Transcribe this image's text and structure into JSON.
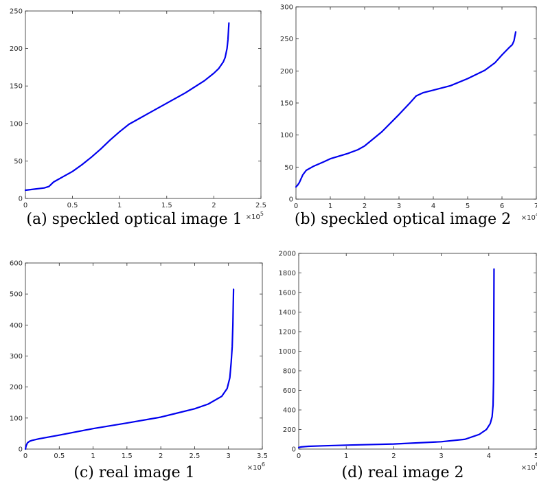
{
  "chart_data": [
    {
      "type": "line",
      "caption": "(a) speckled optical image 1",
      "xlim": [
        0,
        250000
      ],
      "ylim": [
        0,
        250
      ],
      "x_ticks": [
        0,
        50000,
        100000,
        150000,
        200000,
        250000
      ],
      "x_tick_labels": [
        "0",
        "0.5",
        "1",
        "1.5",
        "2",
        "2.5"
      ],
      "y_ticks": [
        0,
        50,
        100,
        150,
        200,
        250
      ],
      "y_tick_labels": [
        "0",
        "50",
        "100",
        "150",
        "200",
        "250"
      ],
      "x_multiplier": {
        "base": "×10",
        "exp": "5"
      },
      "grid": false,
      "color": "#0000ee",
      "series": [
        {
          "x": [
            0,
            10000,
            20000,
            25000,
            30000,
            40000,
            50000,
            60000,
            70000,
            80000,
            90000,
            100000,
            110000,
            120000,
            130000,
            140000,
            150000,
            160000,
            170000,
            180000,
            190000,
            200000,
            205000,
            210000,
            212000,
            214000,
            215000,
            215500,
            216000
          ],
          "y": [
            11,
            12.5,
            14,
            16,
            22,
            29,
            36,
            45,
            55,
            66,
            78,
            89,
            99,
            106,
            113,
            120,
            127,
            134,
            141,
            149,
            157,
            167,
            173,
            182,
            188,
            200,
            212,
            223,
            234
          ]
        }
      ]
    },
    {
      "type": "line",
      "caption": "(b) speckled optical image 2",
      "xlim": [
        0,
        70000
      ],
      "ylim": [
        0,
        300
      ],
      "x_ticks": [
        0,
        10000,
        20000,
        30000,
        40000,
        50000,
        60000,
        70000
      ],
      "x_tick_labels": [
        "0",
        "1",
        "2",
        "3",
        "4",
        "5",
        "6",
        "7"
      ],
      "y_ticks": [
        0,
        50,
        100,
        150,
        200,
        250,
        300
      ],
      "y_tick_labels": [
        "0",
        "50",
        "100",
        "150",
        "200",
        "250",
        "300"
      ],
      "x_multiplier": {
        "base": "×10",
        "exp": "4"
      },
      "grid": false,
      "color": "#0000ee",
      "series": [
        {
          "x": [
            0,
            500,
            1000,
            2000,
            3000,
            5000,
            8000,
            10000,
            15000,
            18000,
            20000,
            25000,
            30000,
            33000,
            35000,
            37000,
            40000,
            45000,
            50000,
            55000,
            58000,
            60000,
            62000,
            63000,
            63500,
            64000
          ],
          "y": [
            19,
            22,
            26,
            38,
            45,
            51,
            58,
            63,
            71,
            77,
            83,
            105,
            132,
            149,
            161,
            166,
            170,
            177,
            188,
            201,
            213,
            225,
            236,
            241,
            247,
            261
          ]
        }
      ]
    },
    {
      "type": "line",
      "caption": "(c) real image 1",
      "xlim": [
        0,
        3500000
      ],
      "ylim": [
        0,
        600
      ],
      "x_ticks": [
        0,
        500000,
        1000000,
        1500000,
        2000000,
        2500000,
        3000000,
        3500000
      ],
      "x_tick_labels": [
        "0",
        "0.5",
        "1",
        "1.5",
        "2",
        "2.5",
        "3",
        "3.5"
      ],
      "y_ticks": [
        0,
        100,
        200,
        300,
        400,
        500,
        600
      ],
      "y_tick_labels": [
        "0",
        "100",
        "200",
        "300",
        "400",
        "500",
        "600"
      ],
      "x_multiplier": {
        "base": "×10",
        "exp": "6"
      },
      "grid": false,
      "color": "#0000ee",
      "series": [
        {
          "x": [
            0,
            10000,
            30000,
            60000,
            100000,
            200000,
            500000,
            1000000,
            1500000,
            2000000,
            2500000,
            2700000,
            2900000,
            2980000,
            3020000,
            3040000,
            3055000,
            3065000,
            3070000,
            3075000
          ],
          "y": [
            0,
            10,
            20,
            25,
            28,
            33,
            45,
            66,
            84,
            103,
            130,
            145,
            170,
            195,
            230,
            280,
            330,
            400,
            460,
            515
          ]
        }
      ]
    },
    {
      "type": "line",
      "caption": "(d) real image 2",
      "xlim": [
        0,
        5000000
      ],
      "ylim": [
        0,
        2000
      ],
      "x_ticks": [
        0,
        1000000,
        2000000,
        3000000,
        4000000,
        5000000
      ],
      "x_tick_labels": [
        "0",
        "1",
        "2",
        "3",
        "4",
        "5"
      ],
      "y_ticks": [
        0,
        200,
        400,
        600,
        800,
        1000,
        1200,
        1400,
        1600,
        1800,
        2000
      ],
      "y_tick_labels": [
        "0",
        "200",
        "400",
        "600",
        "800",
        "1000",
        "1200",
        "1400",
        "1600",
        "1800",
        "2000"
      ],
      "x_multiplier": {
        "base": "×10",
        "exp": "6"
      },
      "grid": false,
      "color": "#0000ee",
      "series": [
        {
          "x": [
            0,
            50000,
            200000,
            500000,
            1000000,
            2000000,
            3000000,
            3500000,
            3800000,
            3950000,
            4030000,
            4070000,
            4090000,
            4100000,
            4105000,
            4110000
          ],
          "y": [
            15,
            22,
            28,
            33,
            40,
            52,
            75,
            100,
            150,
            200,
            260,
            330,
            450,
            700,
            1200,
            1840
          ]
        }
      ]
    }
  ]
}
